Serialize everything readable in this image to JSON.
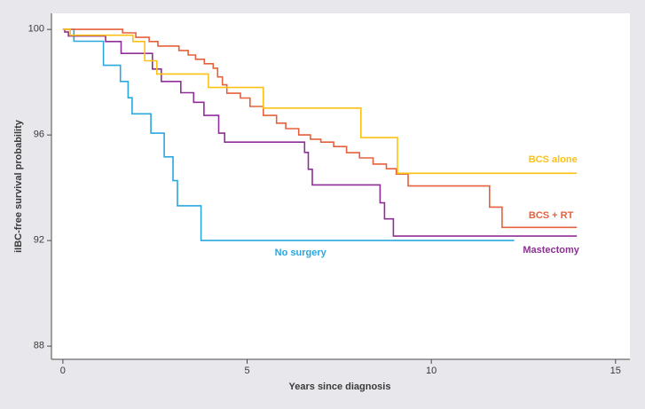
{
  "figure": {
    "background": "#e8e8ec",
    "plot_background": "#ffffff",
    "axis_color": "#4a4a4a",
    "text_color": "#3a3a3a"
  },
  "chart_data": {
    "type": "line",
    "subtype": "kaplan-meier-step-curves",
    "title": "",
    "xlabel": "Years since diagnosis",
    "ylabel": "iIBC-free survival probability",
    "x_ticks": [
      0,
      5,
      10,
      15
    ],
    "y_ticks": [
      100,
      96,
      92,
      88
    ],
    "xlim": [
      -0.31,
      15.39
    ],
    "ylim": [
      87.5,
      100.61
    ],
    "grid": false,
    "legend_position": "inline-labels-on-plot",
    "series": [
      {
        "name": "BCS alone",
        "color": "#FDC113",
        "label_at": [
          13.3,
          95.05
        ],
        "points": [
          [
            0,
            100
          ],
          [
            0.2,
            99.78
          ],
          [
            1.9,
            99.54
          ],
          [
            2.22,
            98.81
          ],
          [
            2.55,
            98.31
          ],
          [
            3.95,
            97.8
          ],
          [
            5.44,
            97.02
          ],
          [
            8.09,
            95.9
          ],
          [
            9.08,
            94.55
          ],
          [
            13.95,
            94.55
          ]
        ]
      },
      {
        "name": "BCS + RT",
        "color": "#E5603C",
        "label_at": [
          13.25,
          92.95
        ],
        "points": [
          [
            0,
            100
          ],
          [
            1.62,
            99.87
          ],
          [
            1.98,
            99.7
          ],
          [
            2.34,
            99.54
          ],
          [
            2.58,
            99.37
          ],
          [
            3.15,
            99.2
          ],
          [
            3.4,
            99.03
          ],
          [
            3.6,
            98.87
          ],
          [
            3.84,
            98.7
          ],
          [
            4.08,
            98.53
          ],
          [
            4.2,
            98.2
          ],
          [
            4.33,
            97.9
          ],
          [
            4.45,
            97.58
          ],
          [
            4.82,
            97.4
          ],
          [
            5.08,
            97.08
          ],
          [
            5.44,
            96.74
          ],
          [
            5.8,
            96.45
          ],
          [
            6.05,
            96.24
          ],
          [
            6.4,
            96.0
          ],
          [
            6.72,
            95.84
          ],
          [
            7.0,
            95.73
          ],
          [
            7.35,
            95.56
          ],
          [
            7.7,
            95.33
          ],
          [
            8.05,
            95.13
          ],
          [
            8.42,
            94.9
          ],
          [
            8.78,
            94.72
          ],
          [
            9.05,
            94.52
          ],
          [
            9.37,
            94.07
          ],
          [
            11.58,
            93.27
          ],
          [
            11.92,
            92.5
          ],
          [
            13.95,
            92.5
          ]
        ]
      },
      {
        "name": "Mastectomy",
        "color": "#8F2E97",
        "label_at": [
          13.25,
          91.65
        ],
        "points": [
          [
            0,
            100
          ],
          [
            0.05,
            99.9
          ],
          [
            0.15,
            99.75
          ],
          [
            1.16,
            99.54
          ],
          [
            1.58,
            99.09
          ],
          [
            2.43,
            98.5
          ],
          [
            2.67,
            98.03
          ],
          [
            3.2,
            97.6
          ],
          [
            3.55,
            97.24
          ],
          [
            3.83,
            96.74
          ],
          [
            4.23,
            96.07
          ],
          [
            4.39,
            95.73
          ],
          [
            6.56,
            95.34
          ],
          [
            6.66,
            94.7
          ],
          [
            6.77,
            94.11
          ],
          [
            8.61,
            93.43
          ],
          [
            8.73,
            92.82
          ],
          [
            8.97,
            92.17
          ],
          [
            13.95,
            92.17
          ]
        ]
      },
      {
        "name": "No surgery",
        "color": "#2AA7DF",
        "label_at": [
          6.45,
          91.55
        ],
        "points": [
          [
            0,
            100
          ],
          [
            0.3,
            99.55
          ],
          [
            1.1,
            98.64
          ],
          [
            1.56,
            98.03
          ],
          [
            1.77,
            97.41
          ],
          [
            1.88,
            96.8
          ],
          [
            2.39,
            96.07
          ],
          [
            2.75,
            95.17
          ],
          [
            2.99,
            94.27
          ],
          [
            3.11,
            93.32
          ],
          [
            3.75,
            92.0
          ],
          [
            12.25,
            92.0
          ]
        ]
      }
    ]
  }
}
